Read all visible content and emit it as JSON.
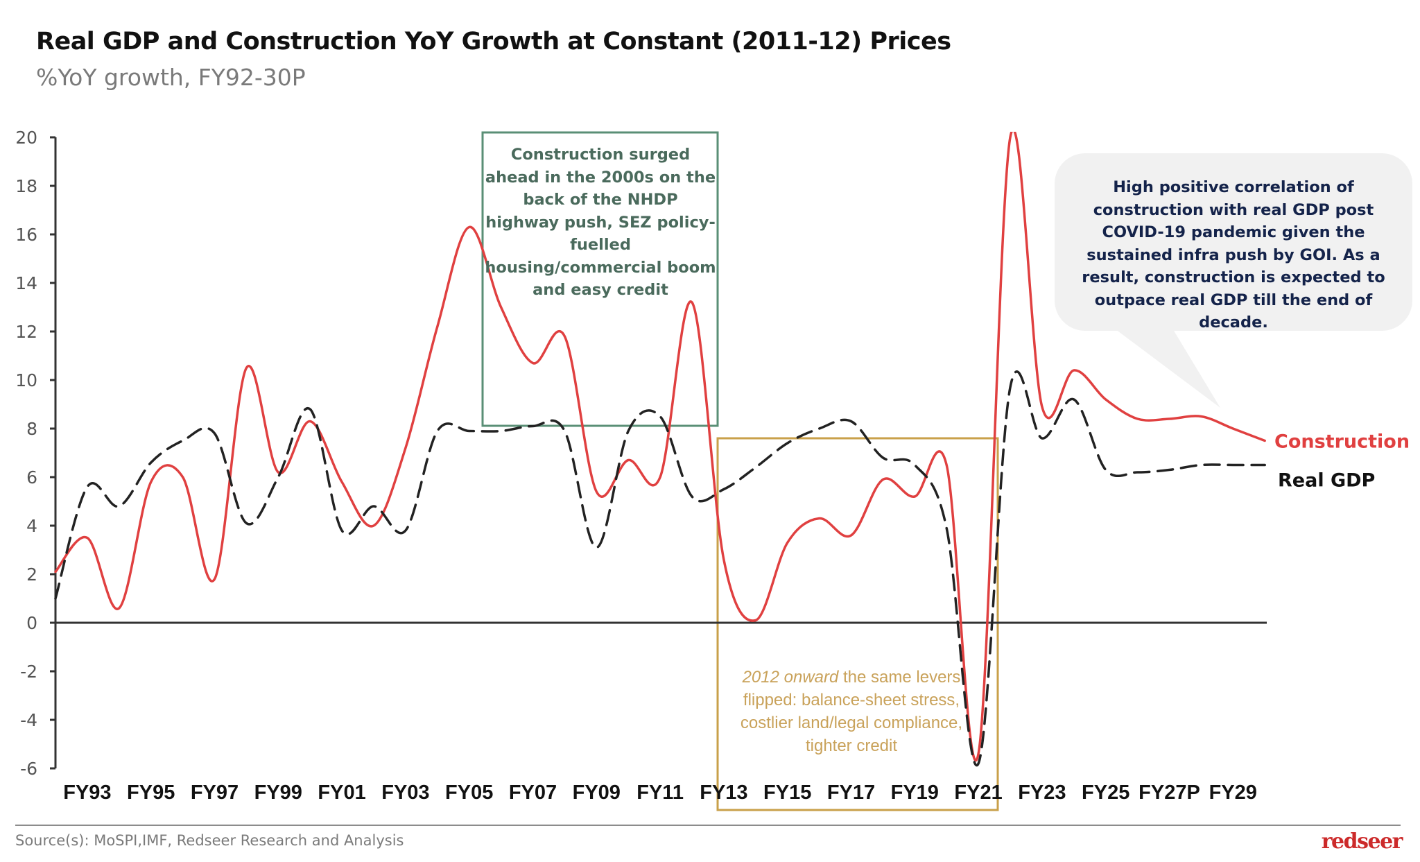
{
  "header": {
    "title": "Real GDP and Construction YoY Growth at Constant (2011-12) Prices",
    "subtitle": "%YoY growth, FY92-30P"
  },
  "annotations": {
    "green_box": "Construction surged ahead in the 2000s on the back of the NHDP highway push, SEZ policy-fuelled housing/commercial boom and easy credit",
    "gold_box_italic": "2012 onward",
    "gold_box_rest": " the same levers flipped: balance-sheet stress, costlier land/legal compliance, tighter credit",
    "bubble": "High positive correlation of construction with real GDP post COVID-19 pandemic given the sustained infra push by GOI. As a result, construction is expected to outpace real GDP till the end of decade."
  },
  "footer": {
    "source": "Source(s): MoSPI,IMF, Redseer Research and Analysis",
    "logo": "redseer"
  },
  "colors": {
    "construction": "#e04040",
    "real_gdp": "#222222",
    "green_box": "#5a8f76",
    "gold_box": "#c9a04a",
    "bubble_bg": "#f1f1f1"
  },
  "chart_data": {
    "type": "line",
    "title": "Real GDP and Construction YoY Growth at Constant (2011-12) Prices",
    "subtitle": "%YoY growth, FY92-30P",
    "xlabel": "",
    "ylabel": "%YoY growth",
    "ylim": [
      -6,
      20
    ],
    "yticks": [
      "20",
      "18",
      "16",
      "14",
      "12",
      "10",
      "8",
      "6",
      "4",
      "2",
      "0",
      "-2",
      "-4",
      "-6"
    ],
    "ytick_values": [
      20,
      18,
      16,
      14,
      12,
      10,
      8,
      6,
      4,
      2,
      0,
      -2,
      -4,
      -6
    ],
    "grid": false,
    "x": [
      "FY92",
      "FY93",
      "FY94",
      "FY95",
      "FY96",
      "FY97",
      "FY98",
      "FY99",
      "FY00",
      "FY01",
      "FY02",
      "FY03",
      "FY04",
      "FY05",
      "FY06",
      "FY07",
      "FY08",
      "FY09",
      "FY10",
      "FY11",
      "FY12",
      "FY13",
      "FY14",
      "FY15",
      "FY16",
      "FY17",
      "FY18",
      "FY19",
      "FY20",
      "FY21",
      "FY22",
      "FY23",
      "FY24",
      "FY25",
      "FY26",
      "FY27P",
      "FY28",
      "FY29",
      "FY30"
    ],
    "xtick_labels": [
      {
        "label": "FY93",
        "index": 1
      },
      {
        "label": "FY95",
        "index": 3
      },
      {
        "label": "FY97",
        "index": 5
      },
      {
        "label": "FY99",
        "index": 7
      },
      {
        "label": "FY01",
        "index": 9
      },
      {
        "label": "FY03",
        "index": 11
      },
      {
        "label": "FY05",
        "index": 13
      },
      {
        "label": "FY07",
        "index": 15
      },
      {
        "label": "FY09",
        "index": 17
      },
      {
        "label": "FY11",
        "index": 19
      },
      {
        "label": "FY13",
        "index": 21
      },
      {
        "label": "FY15",
        "index": 23
      },
      {
        "label": "FY17",
        "index": 25
      },
      {
        "label": "FY19",
        "index": 27
      },
      {
        "label": "FY21",
        "index": 29
      },
      {
        "label": "FY23",
        "index": 31
      },
      {
        "label": "FY25",
        "index": 33
      },
      {
        "label": "FY27P",
        "index": 35
      },
      {
        "label": "FY29",
        "index": 37
      }
    ],
    "series": [
      {
        "name": "Construction",
        "style": "solid",
        "values": [
          2.1,
          3.5,
          0.6,
          5.8,
          6.0,
          1.8,
          10.5,
          6.2,
          8.3,
          5.8,
          4.0,
          7.2,
          12.2,
          16.3,
          13.0,
          10.7,
          11.8,
          5.4,
          6.7,
          6.0,
          13.2,
          2.6,
          0.1,
          3.3,
          4.3,
          3.6,
          5.9,
          5.2,
          6.5,
          -5.4,
          20.0,
          8.9,
          10.4,
          9.2,
          8.4,
          8.4,
          8.5,
          8.0,
          7.5
        ]
      },
      {
        "name": "Real GDP",
        "style": "dashed",
        "values": [
          1.0,
          5.6,
          4.8,
          6.6,
          7.5,
          7.8,
          4.1,
          6.0,
          8.8,
          3.8,
          4.8,
          3.8,
          7.9,
          7.9,
          7.9,
          8.1,
          7.9,
          3.1,
          7.9,
          8.5,
          5.2,
          5.5,
          6.4,
          7.4,
          8.0,
          8.3,
          6.8,
          6.5,
          3.9,
          -5.8,
          9.7,
          7.6,
          9.2,
          6.3,
          6.2,
          6.3,
          6.5,
          6.5,
          6.5
        ]
      }
    ],
    "legend": {
      "placement": "right-end-of-lines",
      "entries": [
        "Construction",
        "Real GDP"
      ]
    },
    "highlight_boxes": [
      {
        "label": "2000s boom",
        "from": "FY06",
        "to": "FY12",
        "ymin": 8,
        "ymax": 20
      },
      {
        "label": "2012 onward",
        "from": "FY13",
        "to": "FY21",
        "ymin": -6,
        "ymax": 7.6
      }
    ]
  }
}
